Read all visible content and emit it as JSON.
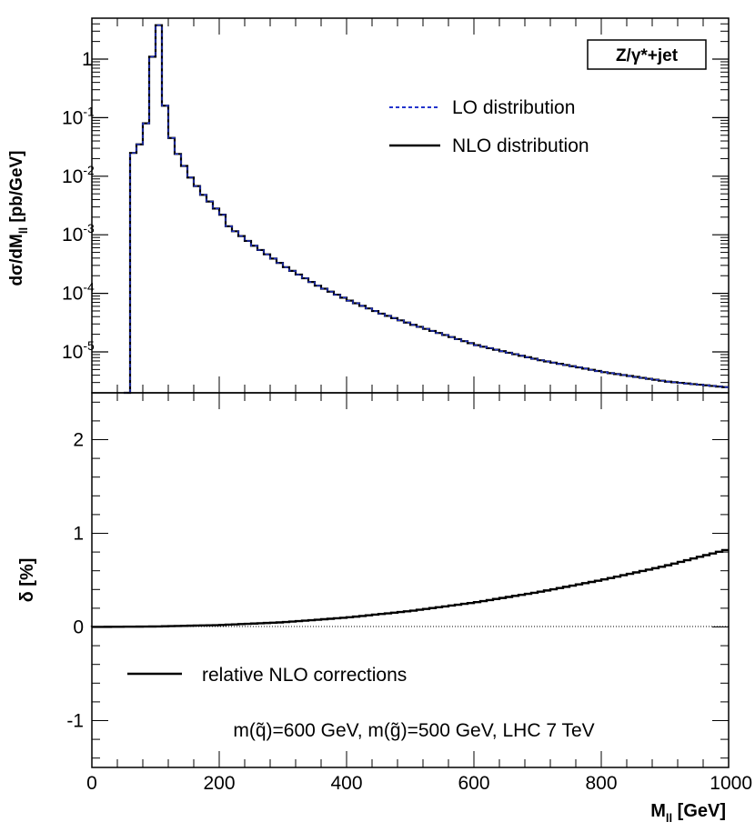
{
  "chart_data": [
    {
      "type": "line",
      "panel": "top",
      "y_scale": "log",
      "xlim": [
        0,
        1000
      ],
      "ylim": [
        2e-06,
        5
      ],
      "ylabel": "dσ/dM",
      "ylabel_sub": "ll",
      "ylabel_units": "[pb/GeV]",
      "process_label": "Z/γ*+jet",
      "y_ticks": [
        {
          "value": 1,
          "base": "1",
          "exp": ""
        },
        {
          "value": 0.1,
          "base": "10",
          "exp": "-1"
        },
        {
          "value": 0.01,
          "base": "10",
          "exp": "-2"
        },
        {
          "value": 0.001,
          "base": "10",
          "exp": "-3"
        },
        {
          "value": 0.0001,
          "base": "10",
          "exp": "-4"
        },
        {
          "value": 1e-05,
          "base": "10",
          "exp": "-5"
        }
      ],
      "legend": [
        {
          "label": "LO distribution",
          "color": "#2233cc",
          "style": "dashed"
        },
        {
          "label": "NLO distribution",
          "color": "#000000",
          "style": "solid"
        }
      ],
      "bin_width": 10,
      "series": [
        {
          "name": "NLO distribution",
          "x_bin_low": [
            40,
            50,
            60,
            70,
            80,
            90,
            100,
            110,
            120,
            130,
            140,
            150,
            160,
            170,
            180,
            190,
            200,
            220,
            250,
            300,
            350,
            400,
            450,
            500,
            600,
            700,
            800,
            900,
            990
          ],
          "values": [
            2e-06,
            0.025,
            0.035,
            0.08,
            1.1,
            3.8,
            0.16,
            0.045,
            0.024,
            0.015,
            0.0095,
            0.0068,
            0.0048,
            0.0037,
            0.0028,
            0.0022,
            0.0017,
            0.00115,
            0.00065,
            0.00028,
            0.000135,
            7.5e-05,
            4.5e-05,
            2.9e-05,
            1.3e-05,
            7.2e-06,
            4.5e-06,
            3.1e-06,
            2.5e-06
          ]
        }
      ]
    },
    {
      "type": "line",
      "panel": "bottom",
      "xlim": [
        0,
        1000
      ],
      "ylim": [
        -1.5,
        2.5
      ],
      "xlabel": "M",
      "xlabel_sub": "ll",
      "xlabel_units": "[GeV]",
      "ylabel": "δ [%]",
      "x_ticks": [
        "0",
        "200",
        "400",
        "600",
        "800",
        "1000"
      ],
      "y_ticks": [
        "-1",
        "0",
        "1",
        "2"
      ],
      "legend": [
        {
          "label": "relative NLO corrections",
          "color": "#000000",
          "style": "solid"
        }
      ],
      "annotation": "m(q̃)=600 GeV, m(g̃)=500 GeV, LHC 7 TeV",
      "series": [
        {
          "name": "relative NLO corrections",
          "x": [
            0,
            100,
            200,
            300,
            400,
            500,
            600,
            700,
            800,
            900,
            1000
          ],
          "values": [
            0,
            0.005,
            0.02,
            0.05,
            0.1,
            0.17,
            0.26,
            0.37,
            0.5,
            0.65,
            0.83
          ]
        }
      ]
    }
  ]
}
